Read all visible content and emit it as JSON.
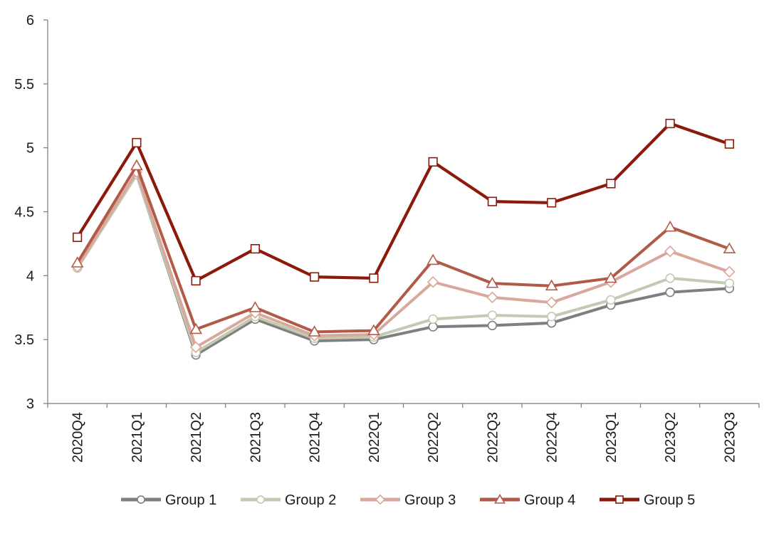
{
  "chart_data": {
    "type": "line",
    "title": "",
    "xlabel": "",
    "ylabel": "",
    "ylim": [
      3,
      6
    ],
    "yticks": [
      3,
      3.5,
      4,
      4.5,
      5,
      5.5,
      6
    ],
    "ytick_labels": [
      "3",
      "3.5",
      "4",
      "4.5",
      "5",
      "5.5",
      "6"
    ],
    "grid": false,
    "legend_position": "bottom",
    "categories": [
      "2020Q4",
      "2021Q1",
      "2021Q2",
      "2021Q3",
      "2021Q4",
      "2022Q1",
      "2022Q2",
      "2022Q3",
      "2022Q4",
      "2023Q1",
      "2023Q2",
      "2023Q3"
    ],
    "series": [
      {
        "name": "Group 1",
        "color": "#7f7f7f",
        "marker": "circle",
        "values": [
          4.06,
          4.79,
          3.38,
          3.66,
          3.49,
          3.5,
          3.6,
          3.61,
          3.63,
          3.77,
          3.87,
          3.9
        ]
      },
      {
        "name": "Group 2",
        "color": "#c4c9b1",
        "marker": "circle",
        "values": [
          4.06,
          4.79,
          3.4,
          3.68,
          3.51,
          3.52,
          3.66,
          3.69,
          3.68,
          3.81,
          3.98,
          3.94
        ]
      },
      {
        "name": "Group 3",
        "color": "#d9a89c",
        "marker": "diamond",
        "values": [
          4.07,
          4.81,
          3.44,
          3.71,
          3.53,
          3.54,
          3.95,
          3.83,
          3.79,
          3.95,
          4.19,
          4.03
        ]
      },
      {
        "name": "Group 4",
        "color": "#b15a48",
        "marker": "triangle",
        "values": [
          4.1,
          4.86,
          3.58,
          3.75,
          3.56,
          3.57,
          4.12,
          3.94,
          3.92,
          3.98,
          4.38,
          4.21
        ]
      },
      {
        "name": "Group 5",
        "color": "#8b1a0a",
        "marker": "square",
        "values": [
          4.3,
          5.04,
          3.96,
          4.21,
          3.99,
          3.98,
          4.89,
          4.58,
          4.57,
          4.72,
          5.19,
          5.03
        ]
      }
    ]
  }
}
